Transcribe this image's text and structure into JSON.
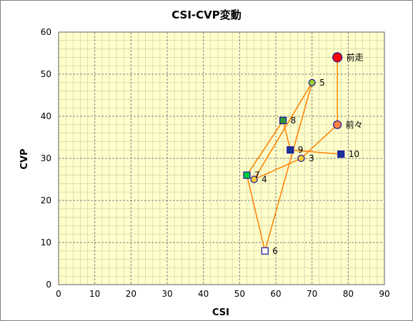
{
  "chart_data": {
    "type": "scatter",
    "title": "CSI-CVP変動",
    "xlabel": "CSI",
    "ylabel": "CVP",
    "xlim": [
      0,
      90
    ],
    "ylim": [
      0,
      60
    ],
    "x_ticks": [
      "0",
      "10",
      "20",
      "30",
      "40",
      "50",
      "60",
      "70",
      "80",
      "90"
    ],
    "y_ticks": [
      "0",
      "10",
      "20",
      "30",
      "40",
      "50",
      "60"
    ],
    "grid": true,
    "plot_background": "#ffffcc",
    "line_color": "#ff8000",
    "points": [
      {
        "label": "前走",
        "x": 77,
        "y": 54,
        "shape": "circle",
        "fill": "#ff0000",
        "size": "large"
      },
      {
        "label": "前々",
        "x": 77,
        "y": 38,
        "shape": "circle",
        "fill": "#ff8040",
        "size": "medium"
      },
      {
        "label": "3",
        "x": 67,
        "y": 30,
        "shape": "circle",
        "fill": "#ffcc33",
        "size": "small"
      },
      {
        "label": "4",
        "x": 54,
        "y": 25,
        "shape": "circle",
        "fill": "#ffcc33",
        "size": "small"
      },
      {
        "label": "5",
        "x": 70,
        "y": 48,
        "shape": "circle",
        "fill": "#99cc33",
        "size": "small"
      },
      {
        "label": "6",
        "x": 57,
        "y": 8,
        "shape": "square",
        "fill": "#ffffff",
        "size": "small"
      },
      {
        "label": "7",
        "x": 52,
        "y": 26,
        "shape": "square",
        "fill": "#00cc33",
        "size": "small"
      },
      {
        "label": "8",
        "x": 62,
        "y": 39,
        "shape": "square",
        "fill": "#339933",
        "size": "small"
      },
      {
        "label": "9",
        "x": 64,
        "y": 32,
        "shape": "square",
        "fill": "#1a3399",
        "size": "small"
      },
      {
        "label": "10",
        "x": 78,
        "y": 31,
        "shape": "square",
        "fill": "#1a3399",
        "size": "small"
      }
    ],
    "connection_order": [
      "前走",
      "前々",
      "3",
      "4",
      "5",
      "6",
      "7",
      "8",
      "9",
      "10"
    ]
  }
}
